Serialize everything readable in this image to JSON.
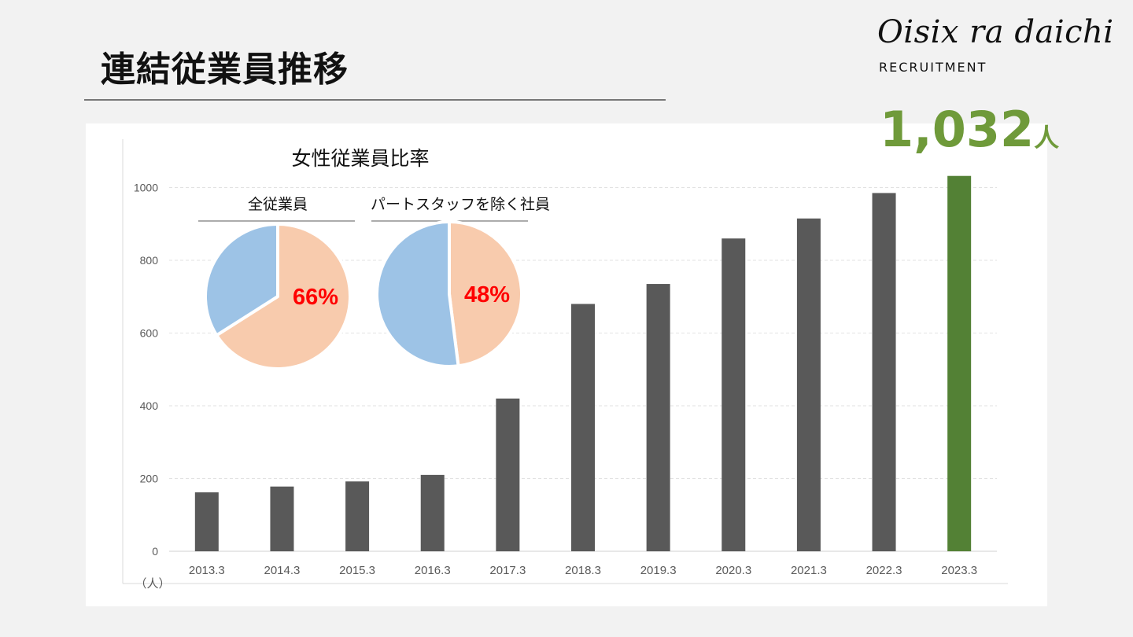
{
  "page": {
    "title": "連結従業員推移",
    "logo": "Oisix ra daichi",
    "logo_sub": "RECRUITMENT"
  },
  "highlight": {
    "value": "1,032",
    "unit": "人",
    "color": "#6f9a3a"
  },
  "chart_data": [
    {
      "type": "bar",
      "categories": [
        "2013.3",
        "2014.3",
        "2015.3",
        "2016.3",
        "2017.3",
        "2018.3",
        "2019.3",
        "2020.3",
        "2021.3",
        "2022.3",
        "2023.3"
      ],
      "values": [
        162,
        178,
        192,
        210,
        420,
        680,
        735,
        860,
        915,
        985,
        1032
      ],
      "bar_colors": [
        "#595959",
        "#595959",
        "#595959",
        "#595959",
        "#595959",
        "#595959",
        "#595959",
        "#595959",
        "#595959",
        "#595959",
        "#538135"
      ],
      "yticks": [
        0,
        200,
        400,
        600,
        800,
        1000
      ],
      "ylim": [
        0,
        1100
      ],
      "unit_label": "（人）",
      "grid": true
    },
    {
      "type": "pie",
      "group_title": "女性従業員比率",
      "title": "全従業員",
      "slices": [
        {
          "name": "",
          "value": 66,
          "color": "#f8cbad"
        },
        {
          "name": "",
          "value": 34,
          "color": "#9dc3e6"
        }
      ],
      "label": "66%",
      "label_color": "#ff0000"
    },
    {
      "type": "pie",
      "title": "パートスタッフを除く社員",
      "slices": [
        {
          "name": "",
          "value": 48,
          "color": "#f8cbad"
        },
        {
          "name": "",
          "value": 52,
          "color": "#9dc3e6"
        }
      ],
      "label": "48%",
      "label_color": "#ff0000"
    }
  ]
}
